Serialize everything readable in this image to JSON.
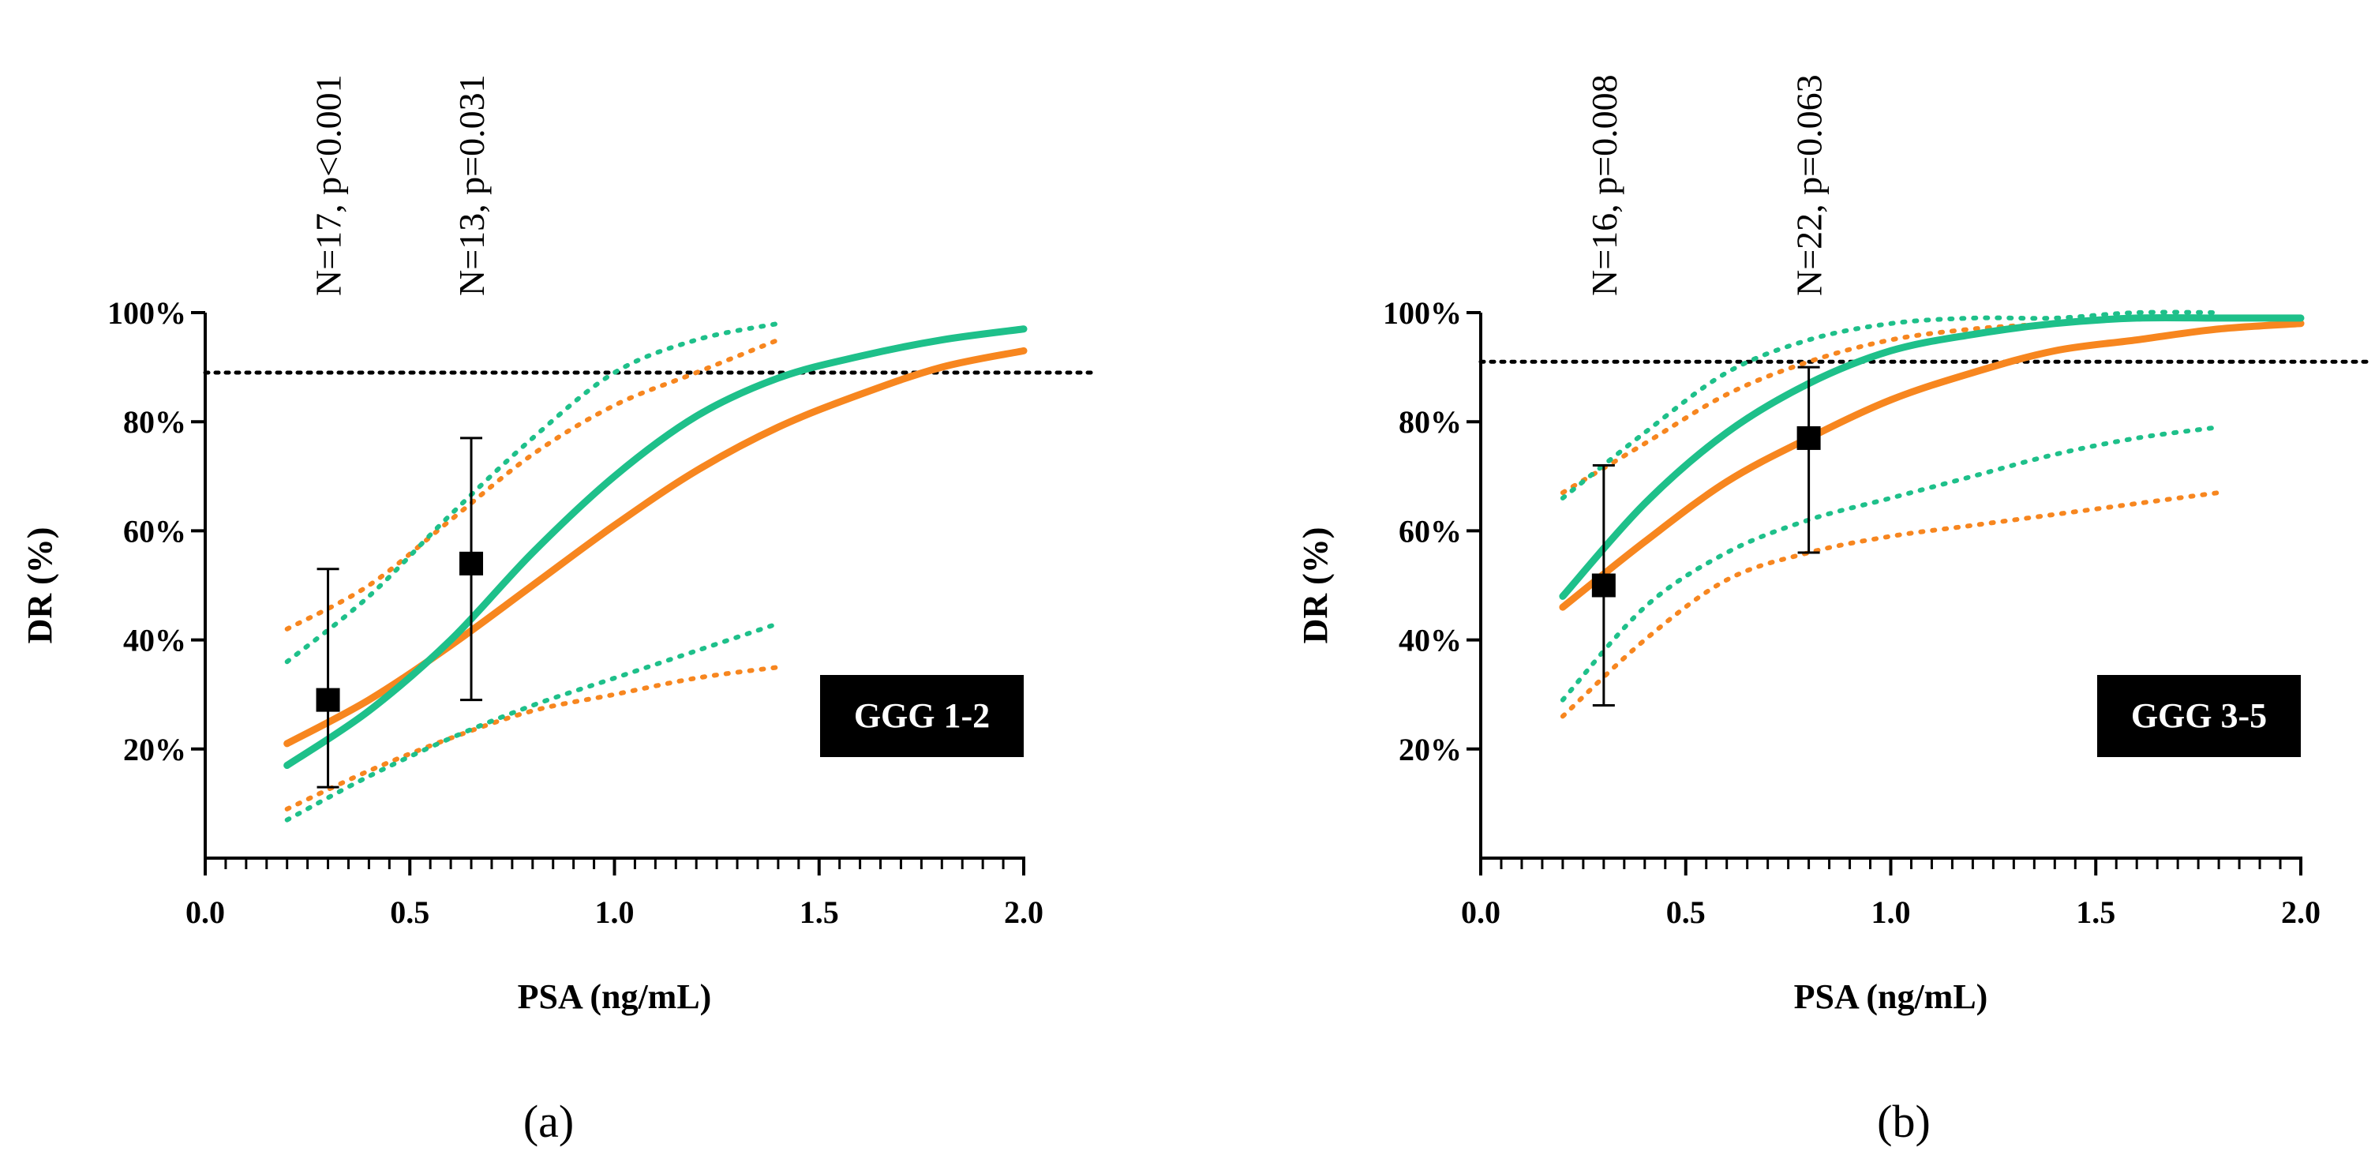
{
  "colors": {
    "orange": "#f7861f",
    "green": "#1ec08a",
    "black": "#000000"
  },
  "chart_data": [
    {
      "type": "line",
      "panel_label": "(a)",
      "group_label": "GGG 1-2",
      "xlabel": "PSA (ng/mL)",
      "ylabel": "DR (%)",
      "xlim": [
        0,
        2.0
      ],
      "ylim": [
        0,
        100
      ],
      "x_ticks": [
        0.0,
        0.5,
        1.0,
        1.5,
        2.0
      ],
      "x_tick_labels": [
        "0.0",
        "0.5",
        "1.0",
        "1.5",
        "2.0"
      ],
      "y_ticks": [
        20,
        40,
        60,
        80,
        100
      ],
      "y_tick_labels": [
        "20%",
        "40%",
        "60%",
        "80%",
        "100%"
      ],
      "reference_line_y": 89,
      "series": [
        {
          "name": "orange-fit",
          "color": "orange",
          "style": "solid",
          "x": [
            0.2,
            0.4,
            0.6,
            0.8,
            1.0,
            1.2,
            1.4,
            1.6,
            1.8,
            2.0
          ],
          "y": [
            21,
            29,
            39,
            50,
            61,
            71,
            79,
            85,
            90,
            93
          ]
        },
        {
          "name": "orange-ci-upper",
          "color": "orange",
          "style": "dotted",
          "x": [
            0.2,
            0.4,
            0.6,
            0.8,
            1.0,
            1.2,
            1.4
          ],
          "y": [
            42,
            50,
            62,
            74,
            83,
            89,
            95
          ]
        },
        {
          "name": "orange-ci-lower",
          "color": "orange",
          "style": "dotted",
          "x": [
            0.2,
            0.4,
            0.6,
            0.8,
            1.0,
            1.2,
            1.4
          ],
          "y": [
            9,
            16,
            22,
            27,
            30,
            33,
            35
          ]
        },
        {
          "name": "green-fit",
          "color": "green",
          "style": "solid",
          "x": [
            0.2,
            0.4,
            0.6,
            0.8,
            1.0,
            1.2,
            1.4,
            1.6,
            1.8,
            2.0
          ],
          "y": [
            17,
            27,
            40,
            56,
            70,
            81,
            88,
            92,
            95,
            97
          ]
        },
        {
          "name": "green-ci-upper",
          "color": "green",
          "style": "dotted",
          "x": [
            0.2,
            0.4,
            0.6,
            0.8,
            1.0,
            1.2,
            1.4
          ],
          "y": [
            36,
            48,
            63,
            77,
            89,
            95,
            98
          ]
        },
        {
          "name": "green-ci-lower",
          "color": "green",
          "style": "dotted",
          "x": [
            0.2,
            0.4,
            0.6,
            0.8,
            1.0,
            1.2,
            1.4
          ],
          "y": [
            7,
            15,
            22,
            28,
            33,
            38,
            43
          ]
        }
      ],
      "points": [
        {
          "x": 0.3,
          "y": 29,
          "lower": 13,
          "upper": 53,
          "label": "N=17, p<0.001"
        },
        {
          "x": 0.65,
          "y": 54,
          "lower": 29,
          "upper": 77,
          "label": "N=13, p=0.031"
        }
      ]
    },
    {
      "type": "line",
      "panel_label": "(b)",
      "group_label": "GGG 3-5",
      "xlabel": "PSA (ng/mL)",
      "ylabel": "DR (%)",
      "xlim": [
        0,
        2.0
      ],
      "ylim": [
        0,
        100
      ],
      "x_ticks": [
        0.0,
        0.5,
        1.0,
        1.5,
        2.0
      ],
      "x_tick_labels": [
        "0.0",
        "0.5",
        "1.0",
        "1.5",
        "2.0"
      ],
      "y_ticks": [
        20,
        40,
        60,
        80,
        100
      ],
      "y_tick_labels": [
        "20%",
        "40%",
        "60%",
        "80%",
        "100%"
      ],
      "reference_line_y": 91,
      "series": [
        {
          "name": "orange-fit",
          "color": "orange",
          "style": "solid",
          "x": [
            0.2,
            0.4,
            0.6,
            0.8,
            1.0,
            1.2,
            1.4,
            1.6,
            1.8,
            2.0
          ],
          "y": [
            46,
            58,
            69,
            77,
            84,
            89,
            93,
            95,
            97,
            98
          ]
        },
        {
          "name": "orange-ci-upper",
          "color": "orange",
          "style": "dotted",
          "x": [
            0.2,
            0.4,
            0.6,
            0.8,
            1.0,
            1.2,
            1.4,
            1.6,
            1.8
          ],
          "y": [
            67,
            76,
            85,
            91,
            95,
            97,
            98,
            99,
            99
          ]
        },
        {
          "name": "orange-ci-lower",
          "color": "orange",
          "style": "dotted",
          "x": [
            0.2,
            0.4,
            0.6,
            0.8,
            1.0,
            1.2,
            1.4,
            1.6,
            1.8
          ],
          "y": [
            26,
            40,
            51,
            56,
            59,
            61,
            63,
            65,
            67
          ]
        },
        {
          "name": "green-fit",
          "color": "green",
          "style": "solid",
          "x": [
            0.2,
            0.4,
            0.6,
            0.8,
            1.0,
            1.2,
            1.4,
            1.6,
            1.8,
            2.0
          ],
          "y": [
            48,
            65,
            78,
            87,
            93,
            96,
            98,
            99,
            99,
            99
          ]
        },
        {
          "name": "green-ci-upper",
          "color": "green",
          "style": "dotted",
          "x": [
            0.2,
            0.4,
            0.6,
            0.8,
            1.0,
            1.2,
            1.4,
            1.6,
            1.8
          ],
          "y": [
            66,
            78,
            89,
            95,
            98,
            99,
            99,
            100,
            100
          ]
        },
        {
          "name": "green-ci-lower",
          "color": "green",
          "style": "dotted",
          "x": [
            0.2,
            0.4,
            0.6,
            0.8,
            1.0,
            1.2,
            1.4,
            1.6,
            1.8
          ],
          "y": [
            29,
            46,
            56,
            62,
            66,
            70,
            74,
            77,
            79
          ]
        }
      ],
      "points": [
        {
          "x": 0.3,
          "y": 50,
          "lower": 28,
          "upper": 72,
          "label": "N=16, p=0.008"
        },
        {
          "x": 0.8,
          "y": 77,
          "lower": 56,
          "upper": 90,
          "label": "N=22, p=0.063"
        }
      ]
    }
  ]
}
